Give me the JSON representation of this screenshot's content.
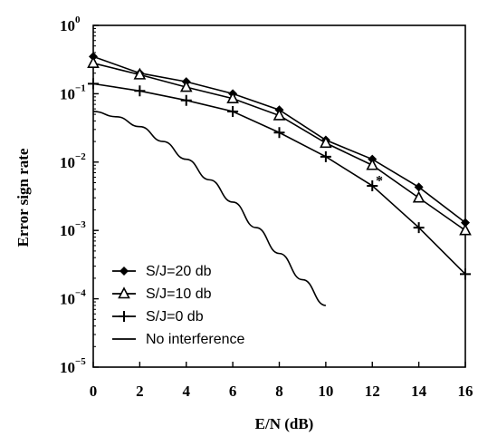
{
  "chart_data": {
    "type": "line",
    "title": "",
    "xlabel": "E/N (dB)",
    "ylabel": "Error sign rate",
    "x_ticks": [
      0,
      2,
      4,
      6,
      8,
      10,
      12,
      14,
      16
    ],
    "y_ticks": [
      {
        "value": 1,
        "base": "10",
        "exp": "0"
      },
      {
        "value": 0.1,
        "base": "10",
        "exp": "−1"
      },
      {
        "value": 0.01,
        "base": "10",
        "exp": "−2"
      },
      {
        "value": 0.001,
        "base": "10",
        "exp": "−3"
      },
      {
        "value": 0.0001,
        "base": "10",
        "exp": "−4"
      },
      {
        "value": 1e-05,
        "base": "10",
        "exp": "−5"
      }
    ],
    "xlim": [
      0,
      16
    ],
    "ylim": [
      1e-05,
      1
    ],
    "y_scale": "log",
    "grid": false,
    "legend_position": "bottom-left",
    "series": [
      {
        "name": "S/J=20 db",
        "marker": "diamond",
        "x": [
          0,
          2,
          4,
          6,
          8,
          10,
          12,
          14,
          16
        ],
        "y": [
          0.35,
          0.2,
          0.15,
          0.1,
          0.058,
          0.021,
          0.011,
          0.0043,
          0.0013
        ]
      },
      {
        "name": "S/J=10 db",
        "marker": "triangle",
        "x": [
          0,
          2,
          4,
          6,
          8,
          10,
          12,
          14,
          16
        ],
        "y": [
          0.28,
          0.19,
          0.125,
          0.085,
          0.048,
          0.019,
          0.009,
          0.003,
          0.001
        ]
      },
      {
        "name": "S/J=0 db",
        "marker": "plus",
        "x": [
          0,
          2,
          4,
          6,
          8,
          10,
          12,
          14,
          16
        ],
        "y": [
          0.14,
          0.11,
          0.08,
          0.055,
          0.027,
          0.012,
          0.0045,
          0.0011,
          0.00023
        ]
      },
      {
        "name": "No interference",
        "marker": "none",
        "x": [
          0,
          1,
          2,
          3,
          4,
          5,
          6,
          7,
          8,
          9,
          10
        ],
        "y": [
          0.055,
          0.046,
          0.033,
          0.02,
          0.011,
          0.0055,
          0.0026,
          0.0011,
          0.00046,
          0.00019,
          8e-05
        ]
      }
    ],
    "annotations": [
      {
        "text": "*",
        "x": 12.3,
        "y": 0.0055
      }
    ]
  }
}
